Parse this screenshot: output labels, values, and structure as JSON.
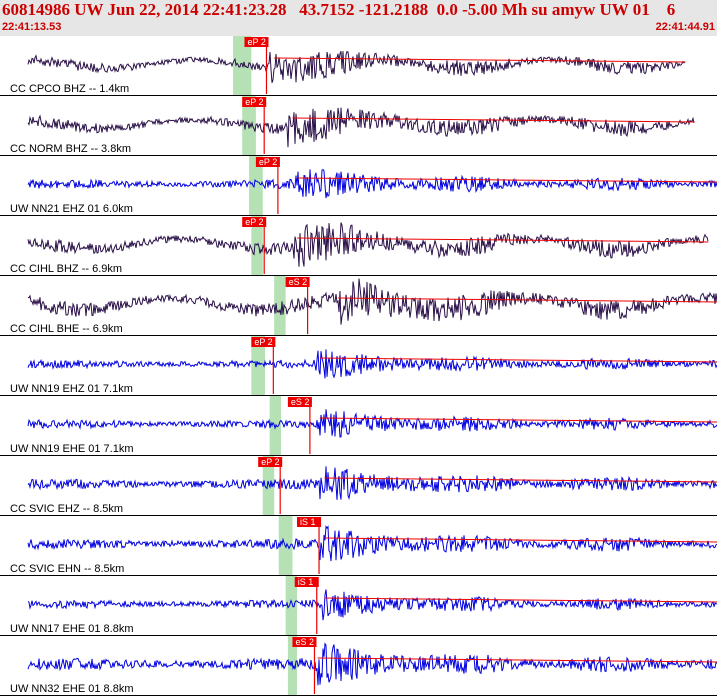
{
  "header": {
    "title": "60814986 UW Jun 22, 2014 22:41:23.28   43.7152 -121.2188  0.0 -5.00 Mh su amyw UW 01    6",
    "start_time": "22:41:13.53",
    "end_time": "22:41:44.91"
  },
  "colors": {
    "header_bg": "#e6e6e6",
    "header_text": "#cc0000",
    "trace_dark": "#2a1048",
    "trace_blue": "#0000e0",
    "pick": "#ee0000",
    "window": "#a8dca8"
  },
  "chart_data": {
    "type": "line",
    "title": "60814986 UW Jun 22, 2014 22:41:23.28   43.7152 -121.2188  0.0 -5.00 Mh su amyw UW 01    6",
    "x_range": [
      "22:41:13.53",
      "22:41:44.91"
    ],
    "x_units": "seconds",
    "x_span_s": 31.38,
    "channels": [
      {
        "label": "CC CPCO BHZ -- 1.4km",
        "pick": "eP 2",
        "pick_s": 10.7,
        "onset_s": 11.8,
        "color": "dark",
        "amp": 0.6,
        "end_s": 30.0,
        "event_s": 12.0,
        "window": [
          10.2,
          11.0
        ]
      },
      {
        "label": "CC NORM BHZ -- 3.8km",
        "pick": "eP 2",
        "pick_s": 10.6,
        "onset_s": 12.6,
        "color": "dark",
        "amp": 0.65,
        "end_s": 30.4,
        "event_s": 12.8,
        "window": [
          10.6,
          11.2
        ]
      },
      {
        "label": "UW NN21 EHZ 01 6.0km",
        "pick": "eP 2",
        "pick_s": 11.2,
        "onset_s": 12.9,
        "color": "blue",
        "amp": 0.55,
        "end_s": 31.38,
        "event_s": 13.0,
        "window": [
          10.9,
          11.5
        ]
      },
      {
        "label": "CC CIHL BHZ -- 6.9km",
        "pick": "eP 2",
        "pick_s": 10.6,
        "onset_s": 12.8,
        "color": "dark",
        "amp": 0.75,
        "end_s": 31.0,
        "event_s": 13.0,
        "window": [
          11.0,
          11.5
        ]
      },
      {
        "label": "CC CIHL BHE -- 6.9km",
        "pick": "eS 2",
        "pick_s": 12.5,
        "onset_s": 14.8,
        "color": "dark",
        "amp": 0.85,
        "end_s": 31.38,
        "event_s": 14.8,
        "window": [
          12.0,
          12.5
        ]
      },
      {
        "label": "UW NN19 EHZ 01 7.1km",
        "pick": "eP 2",
        "pick_s": 11.0,
        "onset_s": 13.8,
        "color": "blue",
        "amp": 0.5,
        "end_s": 31.38,
        "event_s": 14.0,
        "window": [
          11.0,
          11.6
        ]
      },
      {
        "label": "UW NN19 EHE 01 7.1km",
        "pick": "eS 2",
        "pick_s": 12.6,
        "onset_s": 13.9,
        "color": "blue",
        "amp": 0.5,
        "end_s": 31.38,
        "event_s": 14.0,
        "window": [
          11.8,
          12.3
        ]
      },
      {
        "label": "CC SVIC EHZ -- 8.5km",
        "pick": "eP 2",
        "pick_s": 11.3,
        "onset_s": 14.0,
        "color": "blue",
        "amp": 0.6,
        "end_s": 31.38,
        "event_s": 14.2,
        "window": [
          11.5,
          12.0
        ]
      },
      {
        "label": "CC SVIC EHN -- 8.5km",
        "pick": "iS 1",
        "pick_s": 13.0,
        "onset_s": 14.0,
        "color": "blue",
        "amp": 0.6,
        "end_s": 31.38,
        "event_s": 14.2,
        "window": [
          12.2,
          12.8
        ]
      },
      {
        "label": "UW NN17 EHE 01 8.8km",
        "pick": "iS 1",
        "pick_s": 12.9,
        "onset_s": 14.1,
        "color": "blue",
        "amp": 0.5,
        "end_s": 31.38,
        "event_s": 14.2,
        "window": [
          12.5,
          13.0
        ]
      },
      {
        "label": "UW NN32 EHE 01 8.8km",
        "pick": "eS 2",
        "pick_s": 12.8,
        "onset_s": 13.8,
        "color": "blue",
        "amp": 0.7,
        "end_s": 31.38,
        "event_s": 13.9,
        "window": [
          12.6,
          13.0
        ]
      }
    ]
  }
}
